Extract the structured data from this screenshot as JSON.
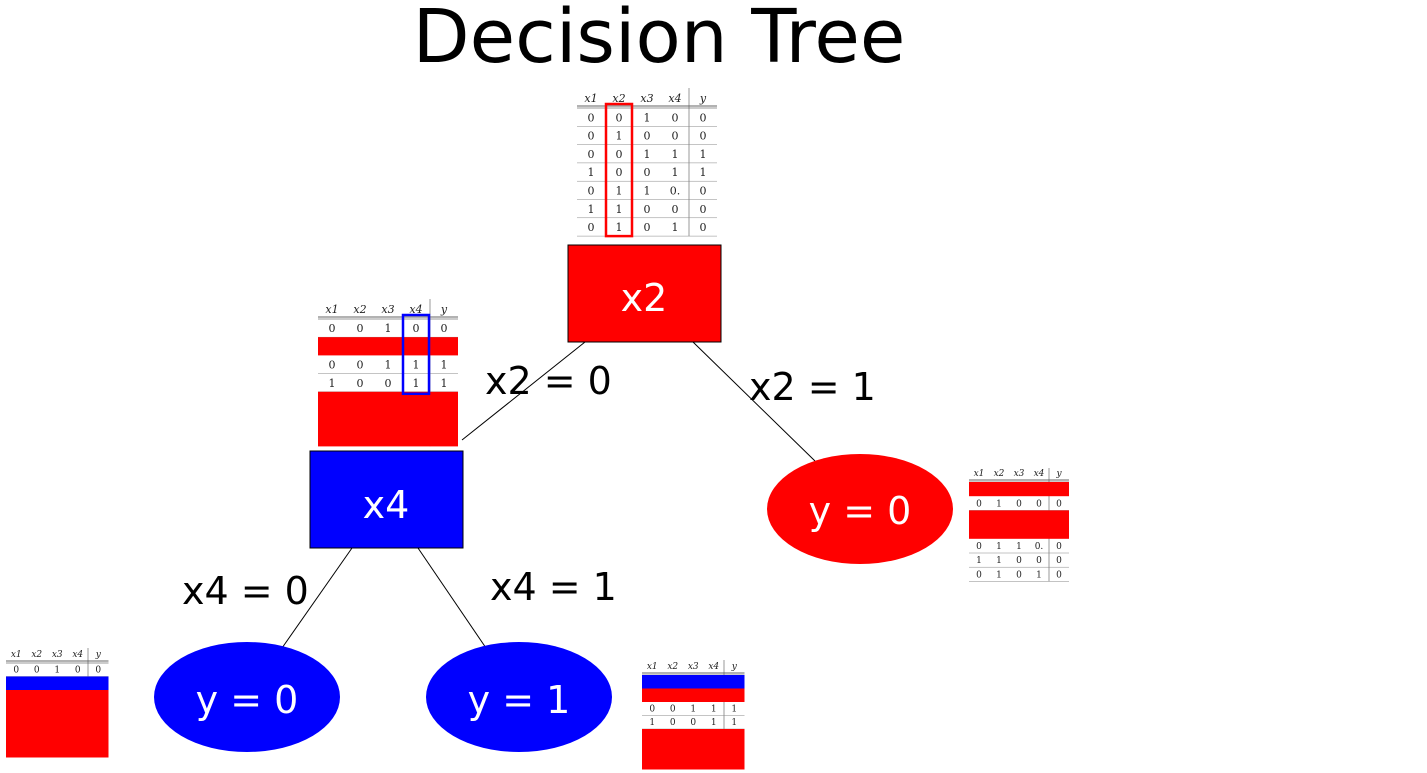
{
  "title": "Decision Tree",
  "table_headers": [
    "x1",
    "x2",
    "x3",
    "x4",
    "y"
  ],
  "nodes": {
    "root": {
      "label": "x2",
      "color": "#ff0000"
    },
    "x4": {
      "label": "x4",
      "color": "#0000ff"
    },
    "leaf_right": {
      "label": "y = 0",
      "color": "#ff0000"
    },
    "leaf_left": {
      "label": "y = 0",
      "color": "#0000ff"
    },
    "leaf_mid": {
      "label": "y = 1",
      "color": "#0000ff"
    }
  },
  "edges": {
    "x2_0": "x2 = 0",
    "x2_1": "x2 = 1",
    "x4_0": "x4 = 0",
    "x4_1": "x4 = 1"
  },
  "tables": {
    "root": [
      [
        "0",
        "0",
        "1",
        "0",
        "0"
      ],
      [
        "0",
        "1",
        "0",
        "0",
        "0"
      ],
      [
        "0",
        "0",
        "1",
        "1",
        "1"
      ],
      [
        "1",
        "0",
        "0",
        "1",
        "1"
      ],
      [
        "0",
        "1",
        "1",
        "0.",
        "0"
      ],
      [
        "1",
        "1",
        "0",
        "0",
        "0"
      ],
      [
        "0",
        "1",
        "0",
        "1",
        "0"
      ]
    ],
    "x4": [
      [
        "0",
        "0",
        "1",
        "0",
        "0"
      ],
      null,
      [
        "0",
        "0",
        "1",
        "1",
        "1"
      ],
      [
        "1",
        "0",
        "0",
        "1",
        "1"
      ],
      null,
      null,
      null
    ],
    "leaf_right": [
      null,
      [
        "0",
        "1",
        "0",
        "0",
        "0"
      ],
      null,
      null,
      [
        "0",
        "1",
        "1",
        "0.",
        "0"
      ],
      [
        "1",
        "1",
        "0",
        "0",
        "0"
      ],
      [
        "0",
        "1",
        "0",
        "1",
        "0"
      ]
    ],
    "leaf_left": [
      [
        "0",
        "0",
        "1",
        "0",
        "0"
      ],
      null,
      null,
      null,
      null,
      null,
      null
    ],
    "leaf_mid": [
      null,
      null,
      [
        "0",
        "0",
        "1",
        "1",
        "1"
      ],
      [
        "1",
        "0",
        "0",
        "1",
        "1"
      ],
      null,
      null,
      null
    ]
  },
  "colors": {
    "red": "#ff0000",
    "blue": "#0000ff",
    "line": "#000000"
  }
}
